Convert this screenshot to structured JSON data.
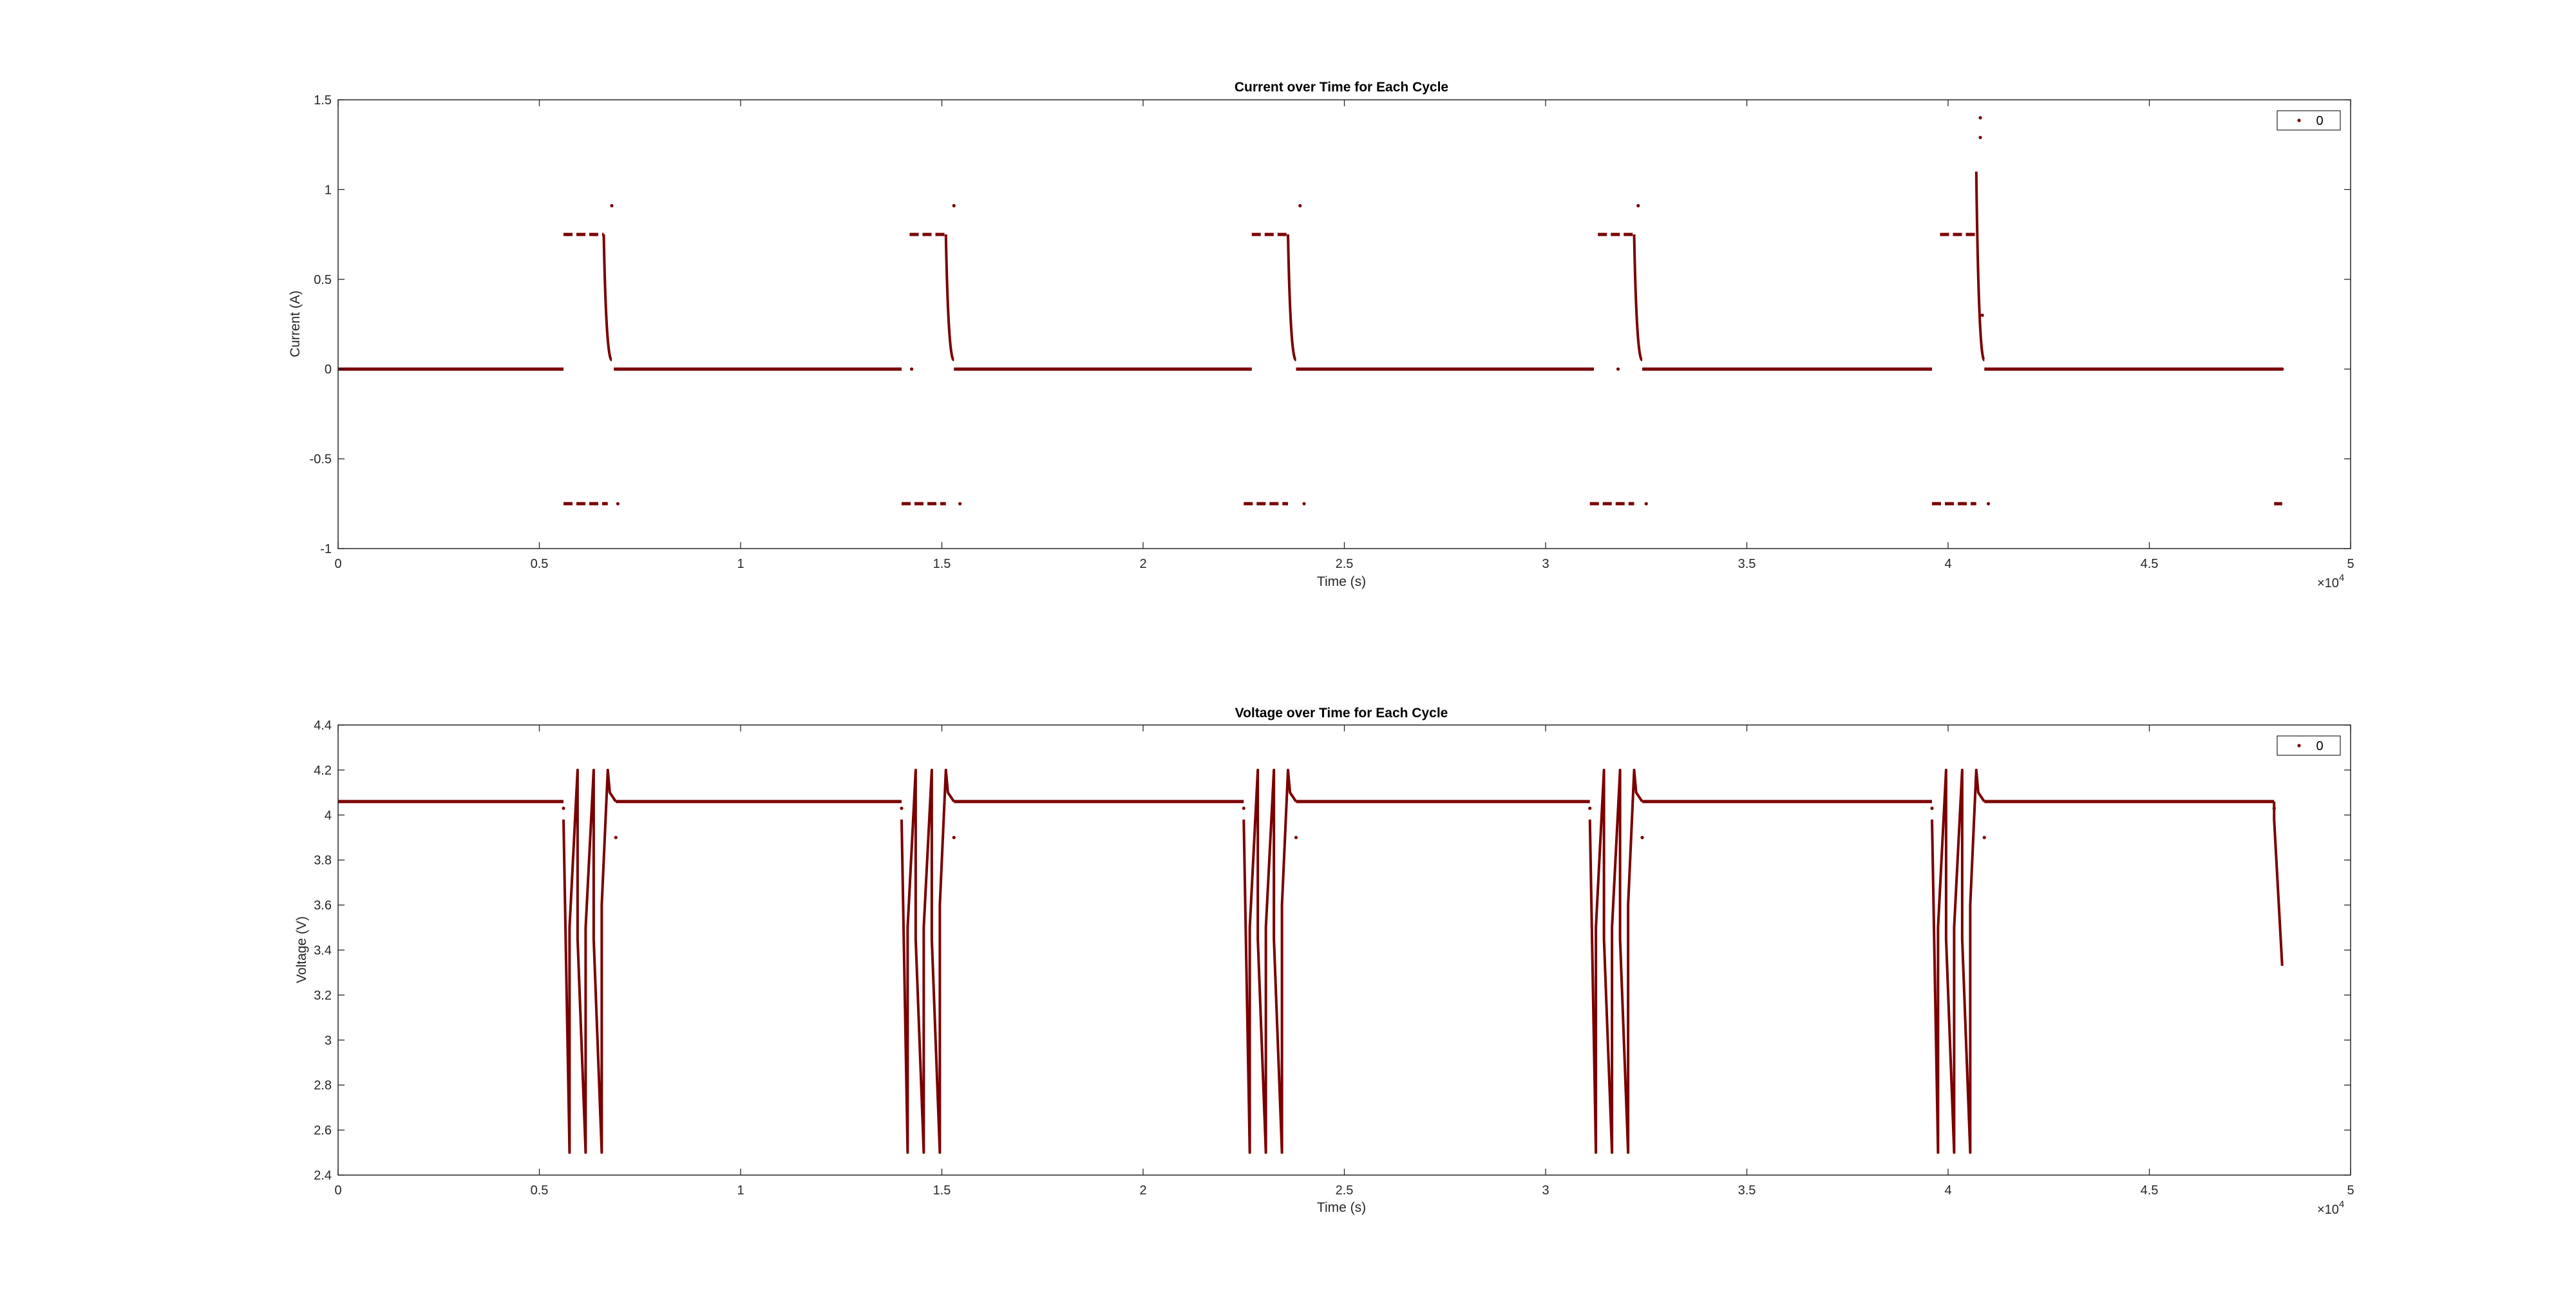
{
  "colors": {
    "series": "#7a0000",
    "axis": "#262626",
    "background": "#ffffff"
  },
  "chart_data": [
    {
      "type": "scatter",
      "title": "Current over Time for Each Cycle",
      "xlabel": "Time (s)",
      "ylabel": "Current (A)",
      "xlim": [
        0,
        50000
      ],
      "ylim": [
        -1,
        1.5
      ],
      "x_ticks": [
        0,
        5000,
        10000,
        15000,
        20000,
        25000,
        30000,
        35000,
        40000,
        45000,
        50000
      ],
      "x_tick_labels": [
        "0",
        "0.5",
        "1",
        "1.5",
        "2",
        "2.5",
        "3",
        "3.5",
        "4",
        "4.5",
        "5"
      ],
      "x_exponent_label": "×10",
      "x_exponent_power": "4",
      "y_ticks": [
        -1,
        -0.5,
        0,
        0.5,
        1,
        1.5
      ],
      "y_tick_labels": [
        "-1",
        "-0.5",
        "0",
        "0.5",
        "1",
        "1.5"
      ],
      "grid": false,
      "legend": {
        "position": "top-right",
        "entries": [
          "0"
        ]
      },
      "series": [
        {
          "name": "0",
          "segments": [
            {
              "kind": "hline",
              "x": [
                0,
                5600
              ],
              "y": 0
            },
            {
              "kind": "dashed",
              "x": [
                5600,
                6700
              ],
              "y": -0.75
            },
            {
              "kind": "dashed",
              "x": [
                5600,
                6600
              ],
              "y": 0.75
            },
            {
              "kind": "decay",
              "x": [
                6600,
                6800
              ],
              "y": [
                0.75,
                0.05
              ]
            },
            {
              "kind": "hline",
              "x": [
                6850,
                14000
              ],
              "y": 0
            },
            {
              "kind": "dashed",
              "x": [
                14000,
                15100
              ],
              "y": -0.75
            },
            {
              "kind": "dashed",
              "x": [
                14200,
                15100
              ],
              "y": 0.75
            },
            {
              "kind": "decay",
              "x": [
                15100,
                15300
              ],
              "y": [
                0.75,
                0.05
              ]
            },
            {
              "kind": "hline",
              "x": [
                15300,
                22700
              ],
              "y": 0
            },
            {
              "kind": "dashed",
              "x": [
                22500,
                23600
              ],
              "y": -0.75
            },
            {
              "kind": "dashed",
              "x": [
                22700,
                23600
              ],
              "y": 0.75
            },
            {
              "kind": "decay",
              "x": [
                23600,
                23800
              ],
              "y": [
                0.75,
                0.05
              ]
            },
            {
              "kind": "hline",
              "x": [
                23800,
                31200
              ],
              "y": 0
            },
            {
              "kind": "dashed",
              "x": [
                31100,
                32200
              ],
              "y": -0.75
            },
            {
              "kind": "dashed",
              "x": [
                31300,
                32200
              ],
              "y": 0.75
            },
            {
              "kind": "decay",
              "x": [
                32200,
                32400
              ],
              "y": [
                0.75,
                0.05
              ]
            },
            {
              "kind": "hline",
              "x": [
                32400,
                39600
              ],
              "y": 0
            },
            {
              "kind": "dashed",
              "x": [
                39600,
                40700
              ],
              "y": -0.75
            },
            {
              "kind": "dashed",
              "x": [
                39800,
                40700
              ],
              "y": 0.75
            },
            {
              "kind": "decay",
              "x": [
                40700,
                40900
              ],
              "y": [
                1.1,
                0.05
              ]
            },
            {
              "kind": "hline",
              "x": [
                40900,
                48300
              ],
              "y": 0
            },
            {
              "kind": "dashed",
              "x": [
                48100,
                48300
              ],
              "y": -0.75
            }
          ],
          "points": [
            [
              6800,
              0.91
            ],
            [
              6950,
              -0.75
            ],
            [
              15300,
              0.91
            ],
            [
              14250,
              0
            ],
            [
              15450,
              -0.75
            ],
            [
              23900,
              0.91
            ],
            [
              24000,
              -0.75
            ],
            [
              32300,
              0.91
            ],
            [
              31800,
              0
            ],
            [
              32500,
              -0.75
            ],
            [
              40800,
              1.4
            ],
            [
              40800,
              1.29
            ],
            [
              40850,
              0.3
            ],
            [
              41000,
              -0.75
            ],
            [
              48300,
              0
            ]
          ]
        }
      ]
    },
    {
      "type": "scatter",
      "title": "Voltage over Time for Each Cycle",
      "xlabel": "Time (s)",
      "ylabel": "Voltage (V)",
      "xlim": [
        0,
        50000
      ],
      "ylim": [
        2.4,
        4.4
      ],
      "x_ticks": [
        0,
        5000,
        10000,
        15000,
        20000,
        25000,
        30000,
        35000,
        40000,
        45000,
        50000
      ],
      "x_tick_labels": [
        "0",
        "0.5",
        "1",
        "1.5",
        "2",
        "2.5",
        "3",
        "3.5",
        "4",
        "4.5",
        "5"
      ],
      "x_exponent_label": "×10",
      "x_exponent_power": "4",
      "y_ticks": [
        2.4,
        2.6,
        2.8,
        3,
        3.2,
        3.4,
        3.6,
        3.8,
        4,
        4.2,
        4.4
      ],
      "y_tick_labels": [
        "2.4",
        "2.6",
        "2.8",
        "3",
        "3.2",
        "3.4",
        "3.6",
        "3.8",
        "4",
        "4.2",
        "4.4"
      ],
      "grid": false,
      "legend": {
        "position": "top-right",
        "entries": [
          "0"
        ]
      },
      "series": [
        {
          "name": "0",
          "rest_level": 4.06,
          "cycle_starts": [
            5600,
            14000,
            22500,
            31100,
            39600
          ],
          "cycle_pulses": [
            [
              [
                5600,
                3.98
              ],
              [
                5750,
                2.5
              ],
              [
                5750,
                3.5
              ],
              [
                5950,
                4.2
              ],
              [
                5950,
                3.45
              ],
              [
                6150,
                2.5
              ],
              [
                6150,
                3.5
              ],
              [
                6350,
                4.2
              ],
              [
                6350,
                3.45
              ],
              [
                6550,
                2.5
              ],
              [
                6550,
                3.6
              ],
              [
                6700,
                4.2
              ],
              [
                6750,
                4.1
              ],
              [
                6900,
                4.06
              ]
            ],
            [
              [
                14000,
                3.98
              ],
              [
                14150,
                2.5
              ],
              [
                14150,
                3.5
              ],
              [
                14350,
                4.2
              ],
              [
                14350,
                3.45
              ],
              [
                14550,
                2.5
              ],
              [
                14550,
                3.5
              ],
              [
                14750,
                4.2
              ],
              [
                14750,
                3.45
              ],
              [
                14950,
                2.5
              ],
              [
                14950,
                3.6
              ],
              [
                15100,
                4.2
              ],
              [
                15150,
                4.1
              ],
              [
                15300,
                4.06
              ]
            ],
            [
              [
                22500,
                3.98
              ],
              [
                22650,
                2.5
              ],
              [
                22650,
                3.5
              ],
              [
                22850,
                4.2
              ],
              [
                22850,
                3.45
              ],
              [
                23050,
                2.5
              ],
              [
                23050,
                3.5
              ],
              [
                23250,
                4.2
              ],
              [
                23250,
                3.45
              ],
              [
                23450,
                2.5
              ],
              [
                23450,
                3.6
              ],
              [
                23600,
                4.2
              ],
              [
                23650,
                4.1
              ],
              [
                23800,
                4.06
              ]
            ],
            [
              [
                31100,
                3.98
              ],
              [
                31250,
                2.5
              ],
              [
                31250,
                3.5
              ],
              [
                31450,
                4.2
              ],
              [
                31450,
                3.45
              ],
              [
                31650,
                2.5
              ],
              [
                31650,
                3.5
              ],
              [
                31850,
                4.2
              ],
              [
                31850,
                3.45
              ],
              [
                32050,
                2.5
              ],
              [
                32050,
                3.6
              ],
              [
                32200,
                4.2
              ],
              [
                32250,
                4.1
              ],
              [
                32400,
                4.06
              ]
            ],
            [
              [
                39600,
                3.98
              ],
              [
                39750,
                2.5
              ],
              [
                39750,
                3.5
              ],
              [
                39950,
                4.2
              ],
              [
                39950,
                3.45
              ],
              [
                40150,
                2.5
              ],
              [
                40150,
                3.5
              ],
              [
                40350,
                4.2
              ],
              [
                40350,
                3.45
              ],
              [
                40550,
                2.5
              ],
              [
                40550,
                3.6
              ],
              [
                40700,
                4.2
              ],
              [
                40750,
                4.1
              ],
              [
                40900,
                4.06
              ]
            ]
          ],
          "tail": [
            [
              48100,
              4.06
            ],
            [
              48100,
              3.98
            ],
            [
              48300,
              3.33
            ]
          ],
          "points": [
            [
              5600,
              4.03
            ],
            [
              14000,
              4.03
            ],
            [
              22500,
              4.03
            ],
            [
              31100,
              4.03
            ],
            [
              39600,
              4.03
            ],
            [
              6900,
              3.9
            ],
            [
              15300,
              3.9
            ],
            [
              23800,
              3.9
            ],
            [
              32400,
              3.9
            ],
            [
              40900,
              3.9
            ],
            [
              48100,
              4.03
            ]
          ]
        }
      ]
    }
  ]
}
